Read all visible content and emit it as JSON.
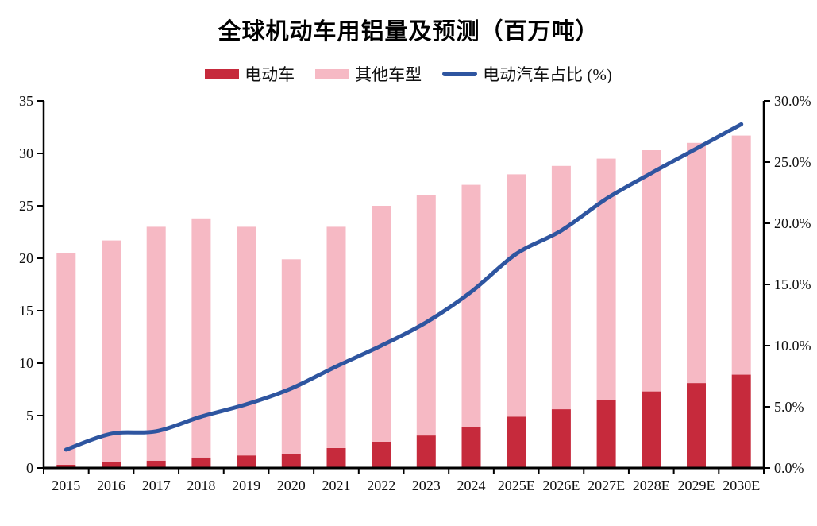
{
  "title": "全球机动车用铝量及预测（百万吨）",
  "legend": [
    {
      "label": "电动车",
      "type": "box",
      "color": "#c62a3c"
    },
    {
      "label": "其他车型",
      "type": "box",
      "color": "#f6b9c4"
    },
    {
      "label": "电动汽车占比 (%)",
      "type": "line",
      "color": "#2e55a0"
    }
  ],
  "chart_data": {
    "type": "bar",
    "subtype": "stacked-bars-with-line-overlay",
    "title": "全球机动车用铝量及预测（百万吨）",
    "categories": [
      "2015",
      "2016",
      "2017",
      "2018",
      "2019",
      "2020",
      "2021",
      "2022",
      "2023",
      "2024",
      "2025E",
      "2026E",
      "2027E",
      "2028E",
      "2029E",
      "2030E"
    ],
    "series": [
      {
        "name": "电动车",
        "type": "bar",
        "stack": "total",
        "axis": "left",
        "color": "#c62a3c",
        "values": [
          0.3,
          0.6,
          0.7,
          1.0,
          1.2,
          1.3,
          1.9,
          2.5,
          3.1,
          3.9,
          4.9,
          5.6,
          6.5,
          7.3,
          8.1,
          8.9
        ]
      },
      {
        "name": "其他车型",
        "type": "bar",
        "stack": "total",
        "axis": "left",
        "color": "#f6b9c4",
        "values": [
          20.2,
          21.1,
          22.3,
          22.8,
          21.8,
          18.6,
          21.1,
          22.5,
          22.9,
          23.1,
          23.1,
          23.2,
          23.0,
          23.0,
          22.9,
          22.8
        ]
      },
      {
        "name": "电动汽车占比 (%)",
        "type": "line",
        "axis": "right",
        "color": "#2e55a0",
        "values": [
          1.5,
          2.8,
          3.0,
          4.2,
          5.2,
          6.5,
          8.3,
          10.0,
          11.9,
          14.4,
          17.5,
          19.4,
          22.0,
          24.1,
          26.1,
          28.1
        ]
      }
    ],
    "stack_totals": [
      20.5,
      21.7,
      23.0,
      23.8,
      23.0,
      19.9,
      23.0,
      25.0,
      26.0,
      27.0,
      28.0,
      28.8,
      29.5,
      30.3,
      31.0,
      31.7
    ],
    "left_axis": {
      "min": 0,
      "max": 35,
      "step": 5,
      "tick_labels": [
        "0",
        "5",
        "10",
        "15",
        "20",
        "25",
        "30",
        "35"
      ]
    },
    "right_axis": {
      "min": 0,
      "max": 30,
      "step": 5,
      "tick_labels": [
        "0.0%",
        "5.0%",
        "10.0%",
        "15.0%",
        "20.0%",
        "25.0%",
        "30.0%"
      ]
    },
    "grid": false,
    "legend_position": "top",
    "axis_color": "#000000"
  }
}
